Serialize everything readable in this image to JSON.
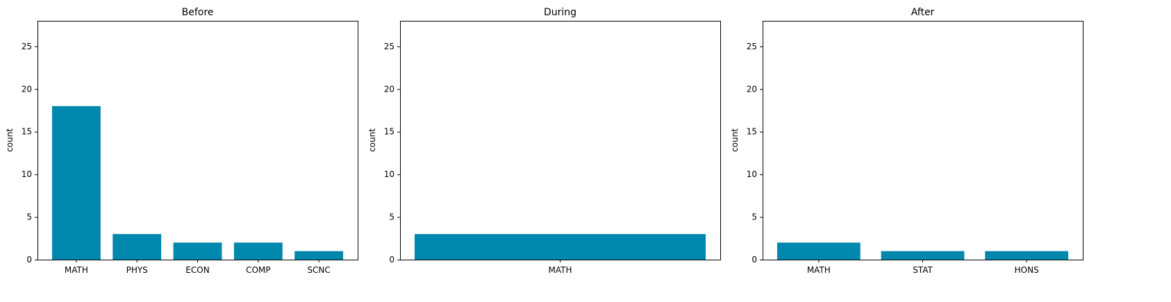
{
  "bar_color": "#0087ad",
  "chart_data": [
    {
      "type": "bar",
      "title": "Before",
      "xlabel": "",
      "ylabel": "count",
      "ylim": [
        0,
        28
      ],
      "yticks": [
        0,
        5,
        10,
        15,
        20,
        25
      ],
      "categories": [
        "MATH",
        "PHYS",
        "ECON",
        "COMP",
        "SCNC"
      ],
      "values": [
        18,
        3,
        2,
        2,
        1
      ],
      "grid": false
    },
    {
      "type": "bar",
      "title": "During",
      "xlabel": "",
      "ylabel": "count",
      "ylim": [
        0,
        28
      ],
      "yticks": [
        0,
        5,
        10,
        15,
        20,
        25
      ],
      "categories": [
        "MATH"
      ],
      "values": [
        3
      ],
      "grid": false
    },
    {
      "type": "bar",
      "title": "After",
      "xlabel": "",
      "ylabel": "count",
      "ylim": [
        0,
        28
      ],
      "yticks": [
        0,
        5,
        10,
        15,
        20,
        25
      ],
      "categories": [
        "MATH",
        "STAT",
        "HONS"
      ],
      "values": [
        2,
        1,
        1
      ],
      "grid": false
    }
  ]
}
